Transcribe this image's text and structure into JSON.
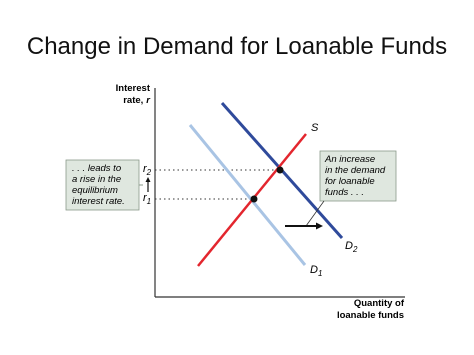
{
  "header": {
    "title": "Change in Demand for Loanable Funds"
  },
  "axes": {
    "y_label": [
      "Interest",
      "rate,",
      "r"
    ],
    "x_label": [
      "Quantity of",
      "loanable funds"
    ]
  },
  "curves": {
    "supply": "S",
    "demand_1": {
      "text": "D",
      "sub": "1"
    },
    "demand_2": {
      "text": "D",
      "sub": "2"
    }
  },
  "rates": {
    "r1": {
      "text": "r",
      "sub": "1"
    },
    "r2": {
      "text": "r",
      "sub": "2"
    }
  },
  "annotations": {
    "left": [
      ". . . leads to",
      "a rise in the",
      "equilibrium",
      "interest rate."
    ],
    "right": [
      "An increase",
      "in the demand",
      "for loanable",
      "funds . . ."
    ]
  }
}
